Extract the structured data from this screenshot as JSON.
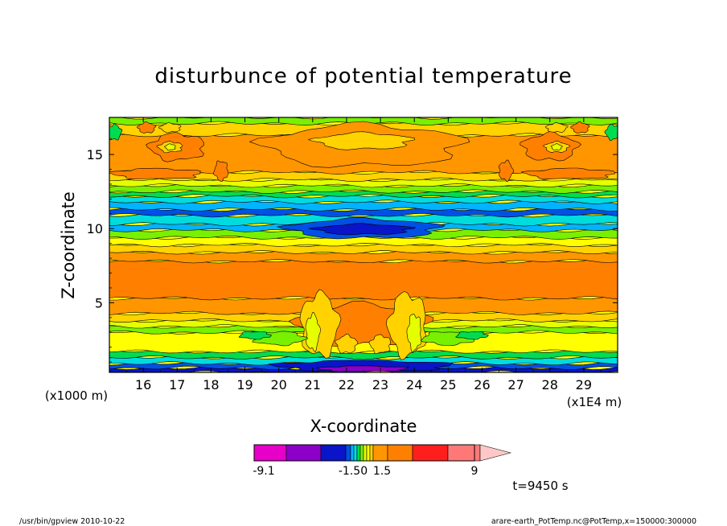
{
  "chart_data": {
    "type": "heatmap",
    "title": "disturbunce of potential temperature",
    "xlabel": "X-coordinate",
    "ylabel": "Z-coordinate",
    "x_unit": "(x1E4 m)",
    "y_unit": "(x1000 m)",
    "x_ticks": [
      16,
      17,
      18,
      19,
      20,
      21,
      22,
      23,
      24,
      25,
      26,
      27,
      28,
      29
    ],
    "y_ticks": [
      5,
      10,
      15
    ],
    "xlim": [
      15,
      30
    ],
    "ylim": [
      0.3,
      17.5
    ],
    "time_label": "t=9450 s",
    "colorbar": {
      "labels": [
        "-9.1",
        "-1.50",
        "1.5",
        "9"
      ],
      "label_values": [
        -9.1,
        -1.5,
        1.5,
        9
      ],
      "colors": [
        "#e600c8",
        "#8c00c8",
        "#0a14c8",
        "#0050e6",
        "#00b4ff",
        "#00dcdc",
        "#00dc50",
        "#78f000",
        "#e6ff00",
        "#ffff00",
        "#ffd200",
        "#ff9600",
        "#ff8000",
        "#ff1e1e",
        "#ff7878",
        "#ffc8c8"
      ]
    },
    "layers": [
      {
        "y0": 0.3,
        "y1": 0.6,
        "color": "#0a14c8"
      },
      {
        "y0": 0.6,
        "y1": 0.9,
        "color": "#0050e6"
      },
      {
        "y0": 0.9,
        "y1": 1.3,
        "color": "#00dcdc"
      },
      {
        "y0": 1.3,
        "y1": 1.7,
        "color": "#00dc50"
      },
      {
        "y0": 1.7,
        "y1": 3.0,
        "color": "#ffff00"
      },
      {
        "y0": 3.0,
        "y1": 3.4,
        "color": "#78f000"
      },
      {
        "y0": 3.4,
        "y1": 3.8,
        "color": "#e6ff00"
      },
      {
        "y0": 3.8,
        "y1": 4.3,
        "color": "#ffd200"
      },
      {
        "y0": 4.3,
        "y1": 5.3,
        "color": "#ff9600"
      },
      {
        "y0": 5.3,
        "y1": 7.8,
        "color": "#ff8000"
      },
      {
        "y0": 7.8,
        "y1": 8.4,
        "color": "#ff9600"
      },
      {
        "y0": 8.4,
        "y1": 8.9,
        "color": "#ffd200"
      },
      {
        "y0": 8.9,
        "y1": 9.4,
        "color": "#ffff00"
      },
      {
        "y0": 9.4,
        "y1": 9.9,
        "color": "#78f000"
      },
      {
        "y0": 9.9,
        "y1": 10.3,
        "color": "#00b4ff"
      },
      {
        "y0": 10.3,
        "y1": 10.9,
        "color": "#00dcdc"
      },
      {
        "y0": 10.9,
        "y1": 11.3,
        "color": "#0050e6"
      },
      {
        "y0": 11.3,
        "y1": 11.8,
        "color": "#00b4ff"
      },
      {
        "y0": 11.8,
        "y1": 12.2,
        "color": "#00dcdc"
      },
      {
        "y0": 12.2,
        "y1": 12.5,
        "color": "#00dc50"
      },
      {
        "y0": 12.5,
        "y1": 12.9,
        "color": "#78f000"
      },
      {
        "y0": 12.9,
        "y1": 13.3,
        "color": "#e6ff00"
      },
      {
        "y0": 13.3,
        "y1": 13.8,
        "color": "#ffd200"
      },
      {
        "y0": 13.8,
        "y1": 16.3,
        "color": "#ff9600"
      },
      {
        "y0": 16.3,
        "y1": 17.1,
        "color": "#ffd200"
      },
      {
        "y0": 17.1,
        "y1": 17.5,
        "color": "#78f000"
      }
    ],
    "patches": [
      {
        "cx": 22.5,
        "cy": 10.0,
        "rx": 2.2,
        "ry": 0.65,
        "color": "#0050e6"
      },
      {
        "cx": 22.5,
        "cy": 9.95,
        "rx": 1.4,
        "ry": 0.35,
        "color": "#0a14c8"
      },
      {
        "cx": 22.5,
        "cy": 15.6,
        "rx": 2.9,
        "ry": 1.4,
        "color": "#ff9600"
      },
      {
        "cx": 22.5,
        "cy": 15.9,
        "rx": 1.4,
        "ry": 0.55,
        "color": "#ffd200"
      },
      {
        "cx": 16.4,
        "cy": 13.7,
        "rx": 1.3,
        "ry": 0.35,
        "color": "#ff8000"
      },
      {
        "cx": 28.6,
        "cy": 13.7,
        "rx": 1.3,
        "ry": 0.35,
        "color": "#ff8000"
      },
      {
        "cx": 17.0,
        "cy": 15.5,
        "rx": 0.8,
        "ry": 0.9,
        "color": "#ff8000"
      },
      {
        "cx": 28.0,
        "cy": 15.5,
        "rx": 0.8,
        "ry": 0.9,
        "color": "#ff8000"
      },
      {
        "cx": 16.8,
        "cy": 16.8,
        "rx": 0.3,
        "ry": 0.3,
        "color": "#ffd200"
      },
      {
        "cx": 28.2,
        "cy": 16.8,
        "rx": 0.3,
        "ry": 0.3,
        "color": "#ffd200"
      },
      {
        "cx": 16.8,
        "cy": 15.5,
        "rx": 0.35,
        "ry": 0.35,
        "color": "#ffd200"
      },
      {
        "cx": 28.2,
        "cy": 15.5,
        "rx": 0.35,
        "ry": 0.35,
        "color": "#ffd200"
      },
      {
        "cx": 16.8,
        "cy": 15.5,
        "rx": 0.15,
        "ry": 0.2,
        "color": "#e6ff00"
      },
      {
        "cx": 28.2,
        "cy": 15.5,
        "rx": 0.15,
        "ry": 0.2,
        "color": "#e6ff00"
      },
      {
        "cx": 18.3,
        "cy": 13.9,
        "rx": 0.2,
        "ry": 0.65,
        "color": "#ff8000"
      },
      {
        "cx": 26.7,
        "cy": 13.9,
        "rx": 0.2,
        "ry": 0.65,
        "color": "#ff8000"
      },
      {
        "cx": 16.1,
        "cy": 16.8,
        "rx": 0.25,
        "ry": 0.35,
        "color": "#ff8000"
      },
      {
        "cx": 28.9,
        "cy": 16.8,
        "rx": 0.25,
        "ry": 0.35,
        "color": "#ff8000"
      },
      {
        "cx": 15.15,
        "cy": 16.5,
        "rx": 0.2,
        "ry": 0.5,
        "color": "#00dc50"
      },
      {
        "cx": 29.85,
        "cy": 16.5,
        "rx": 0.2,
        "ry": 0.5,
        "color": "#00dc50"
      },
      {
        "cx": 22.5,
        "cy": 3.5,
        "rx": 1.9,
        "ry": 1.4,
        "color": "#ff8000"
      },
      {
        "cx": 21.2,
        "cy": 3.5,
        "rx": 0.55,
        "ry": 2.1,
        "color": "#ffd200"
      },
      {
        "cx": 23.8,
        "cy": 3.5,
        "rx": 0.55,
        "ry": 2.1,
        "color": "#ffd200"
      },
      {
        "cx": 21.0,
        "cy": 3.0,
        "rx": 0.2,
        "ry": 1.2,
        "color": "#e6ff00"
      },
      {
        "cx": 24.0,
        "cy": 3.0,
        "rx": 0.2,
        "ry": 1.2,
        "color": "#e6ff00"
      },
      {
        "cx": 22.0,
        "cy": 2.2,
        "rx": 0.3,
        "ry": 0.6,
        "color": "#ffd200"
      },
      {
        "cx": 23.0,
        "cy": 2.2,
        "rx": 0.3,
        "ry": 0.6,
        "color": "#ffd200"
      },
      {
        "cx": 20.0,
        "cy": 2.6,
        "rx": 0.75,
        "ry": 0.45,
        "color": "#78f000"
      },
      {
        "cx": 25.0,
        "cy": 2.6,
        "rx": 0.75,
        "ry": 0.45,
        "color": "#78f000"
      },
      {
        "cx": 19.3,
        "cy": 2.8,
        "rx": 0.45,
        "ry": 0.25,
        "color": "#00dc50"
      },
      {
        "cx": 25.7,
        "cy": 2.8,
        "rx": 0.45,
        "ry": 0.25,
        "color": "#00dc50"
      },
      {
        "cx": 22.5,
        "cy": 0.75,
        "rx": 2.6,
        "ry": 0.35,
        "color": "#0a14c8"
      },
      {
        "cx": 22.5,
        "cy": 0.55,
        "rx": 1.3,
        "ry": 0.18,
        "color": "#8c00c8"
      }
    ]
  },
  "footer": {
    "left": "/usr/bin/gpview   2010-10-22",
    "right": "arare-earth_PotTemp.nc@PotTemp,x=150000:300000"
  }
}
